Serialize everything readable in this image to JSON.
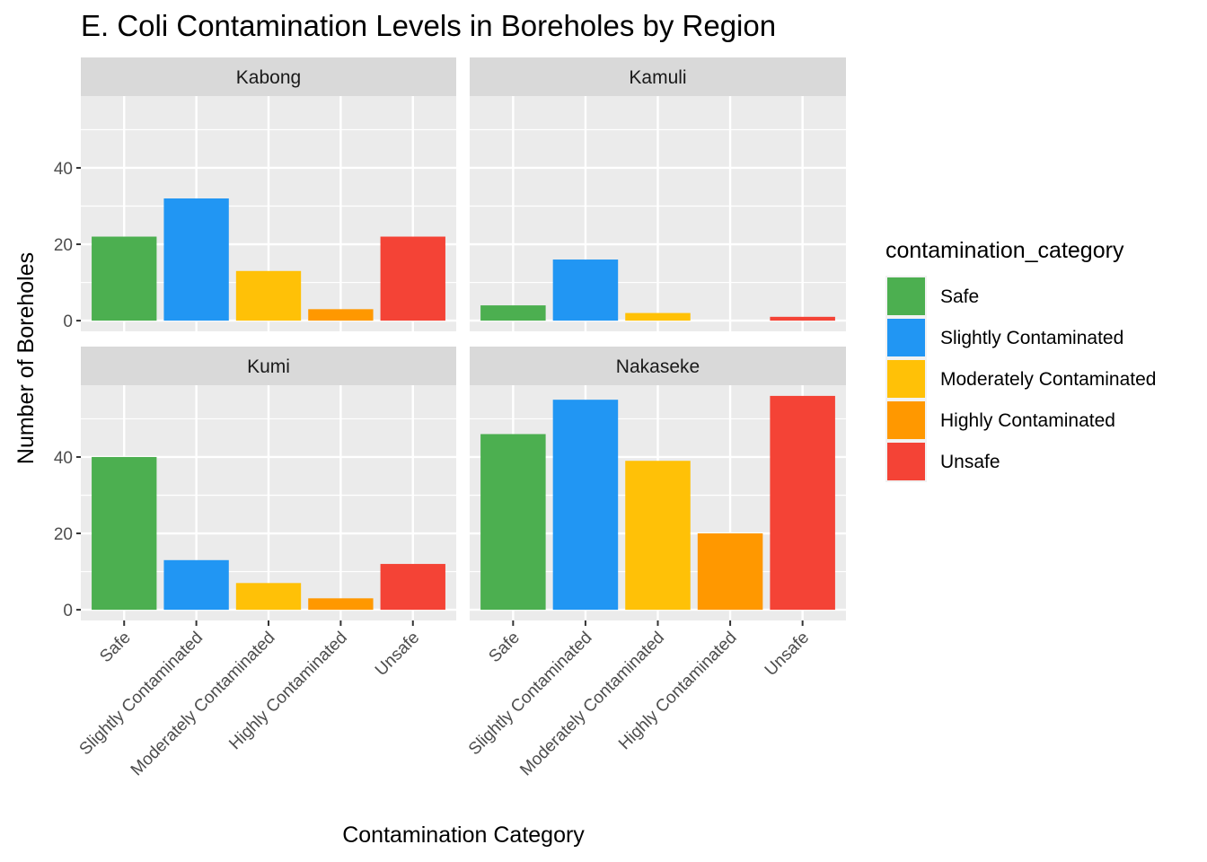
{
  "chart_data": {
    "type": "bar",
    "title": "E. Coli Contamination Levels in Boreholes by Region",
    "xlabel": "Contamination Category",
    "ylabel": "Number of Boreholes",
    "ylim": [
      -2.8,
      58.8
    ],
    "yticks": [
      0,
      20,
      40
    ],
    "grid": true,
    "facet_layout": "2x2",
    "categories": [
      "Safe",
      "Slightly Contaminated",
      "Moderately Contaminated",
      "Highly Contaminated",
      "Unsafe"
    ],
    "colors": {
      "Safe": "#4CAF50",
      "Slightly Contaminated": "#2196F3",
      "Moderately Contaminated": "#FFC107",
      "Highly Contaminated": "#FF9800",
      "Unsafe": "#F44336"
    },
    "panels": [
      {
        "region": "Kabong",
        "values": [
          22,
          32,
          13,
          3,
          22
        ]
      },
      {
        "region": "Kamuli",
        "values": [
          4,
          16,
          2,
          0,
          1
        ]
      },
      {
        "region": "Kumi",
        "values": [
          40,
          13,
          7,
          3,
          12
        ]
      },
      {
        "region": "Nakaseke",
        "values": [
          46,
          55,
          39,
          20,
          56
        ]
      }
    ],
    "legend": {
      "title": "contamination_category",
      "position": "right",
      "entries": [
        "Safe",
        "Slightly Contaminated",
        "Moderately Contaminated",
        "Highly Contaminated",
        "Unsafe"
      ]
    }
  }
}
